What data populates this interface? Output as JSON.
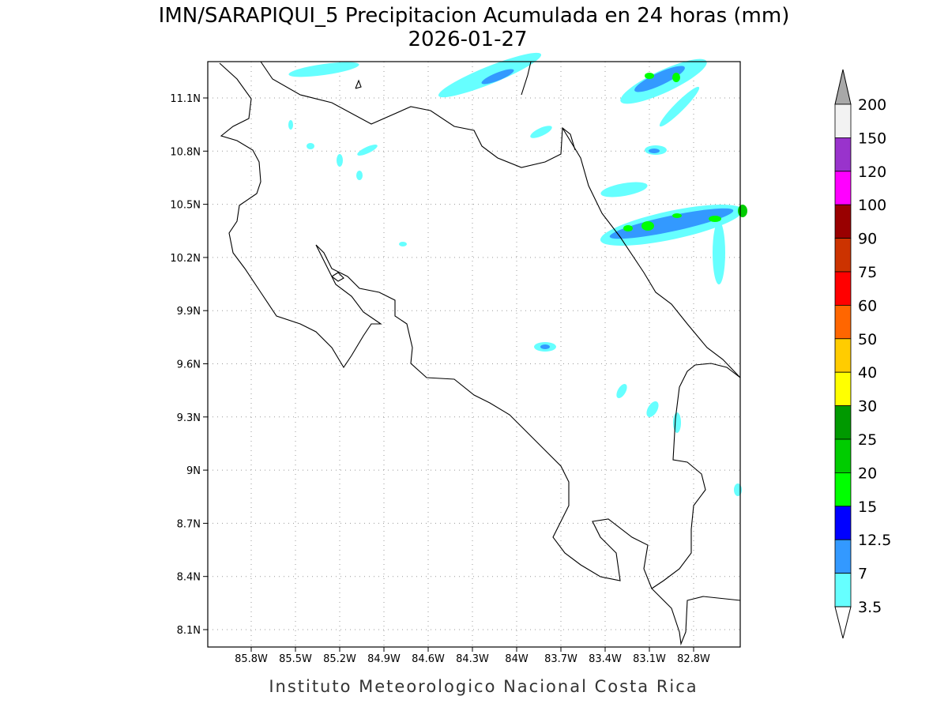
{
  "title": "IMN/SARAPIQUI_5 Precipitacion Acumulada en 24 horas (mm)",
  "date": "2026-01-27",
  "footer": "Instituto Meteorologico Nacional Costa Rica",
  "xticks": [
    "85.8W",
    "85.5W",
    "85.2W",
    "84.9W",
    "84.6W",
    "84.3W",
    "84W",
    "83.7W",
    "83.4W",
    "83.1W",
    "82.8W"
  ],
  "yticks": [
    "11.1N",
    "10.8N",
    "10.5N",
    "10.2N",
    "9.9N",
    "9.6N",
    "9.3N",
    "9N",
    "8.7N",
    "8.4N",
    "8.1N"
  ],
  "colorbar": {
    "levels": [
      200,
      150,
      120,
      100,
      90,
      75,
      60,
      50,
      40,
      30,
      25,
      20,
      15,
      12.5,
      7,
      3.5
    ],
    "colors": [
      "#f2f2f2",
      "#9933cc",
      "#ff00ff",
      "#990000",
      "#cc3300",
      "#ff0000",
      "#ff6600",
      "#ffcc00",
      "#ffff00",
      "#009900",
      "#00cc00",
      "#00ff00",
      "#0000ff",
      "#3399ff",
      "#66ffff"
    ],
    "over_color": "#a8a8a8",
    "under_color": "#ffffff"
  }
}
